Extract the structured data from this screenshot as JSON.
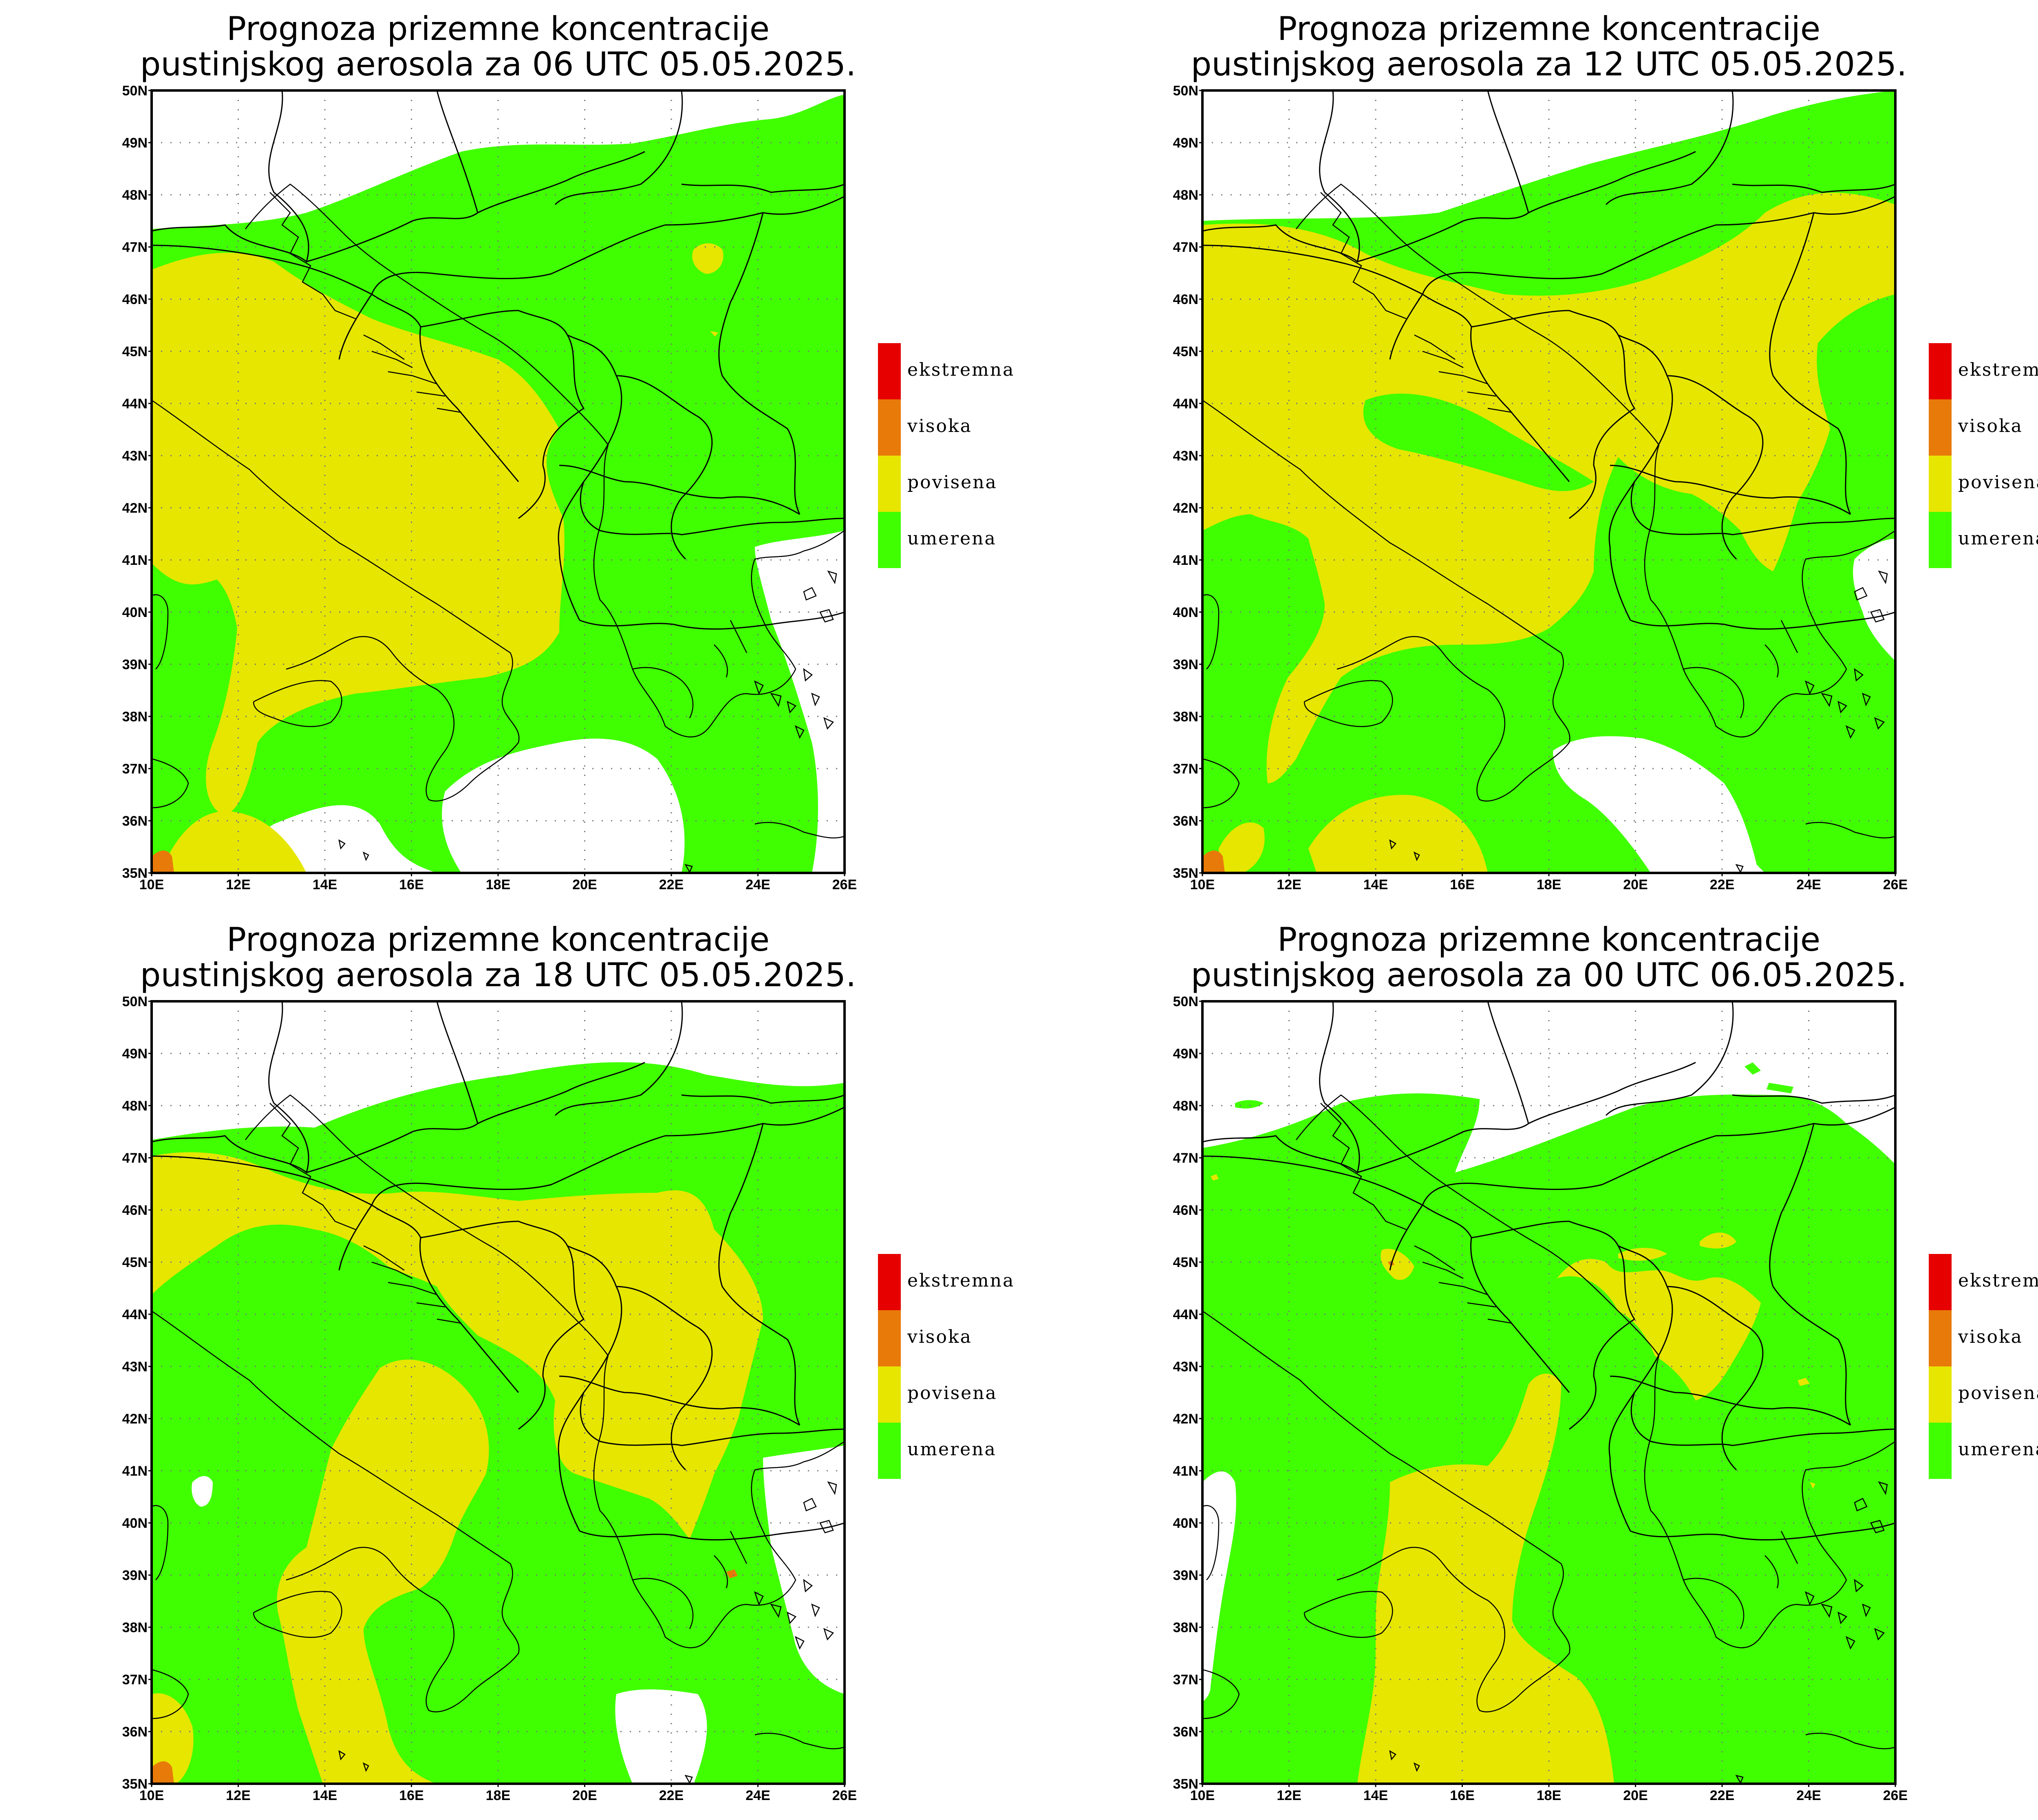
{
  "panels": [
    {
      "title_line1": "Prognoza prizemne koncentracije",
      "title_line2": "pustinjskog aerosola za 06 UTC 05.05.2025."
    },
    {
      "title_line1": "Prognoza prizemne koncentracije",
      "title_line2": "pustinjskog aerosola za 12 UTC 05.05.2025."
    },
    {
      "title_line1": "Prognoza prizemne koncentracije",
      "title_line2": "pustinjskog aerosola za 18 UTC 05.05.2025."
    },
    {
      "title_line1": "Prognoza prizemne koncentracije",
      "title_line2": "pustinjskog aerosola za 00 UTC 06.05.2025."
    }
  ],
  "axes": {
    "lat_labels": [
      "50N",
      "49N",
      "48N",
      "47N",
      "46N",
      "45N",
      "44N",
      "43N",
      "42N",
      "41N",
      "40N",
      "39N",
      "38N",
      "37N",
      "36N",
      "35N"
    ],
    "lon_labels": [
      "10E",
      "12E",
      "14E",
      "16E",
      "18E",
      "20E",
      "22E",
      "24E",
      "26E"
    ]
  },
  "legend": [
    {
      "label": "ekstremna",
      "color": "#e60000"
    },
    {
      "label": "visoka",
      "color": "#e87a0a"
    },
    {
      "label": "povisena",
      "color": "#e6e600"
    },
    {
      "label": "umerena",
      "color": "#40ff00"
    }
  ],
  "colors": {
    "none": "#ffffff",
    "umerena": "#40ff00",
    "povisena": "#e6e600",
    "visoka": "#e87a0a",
    "ekstremna": "#e60000"
  }
}
